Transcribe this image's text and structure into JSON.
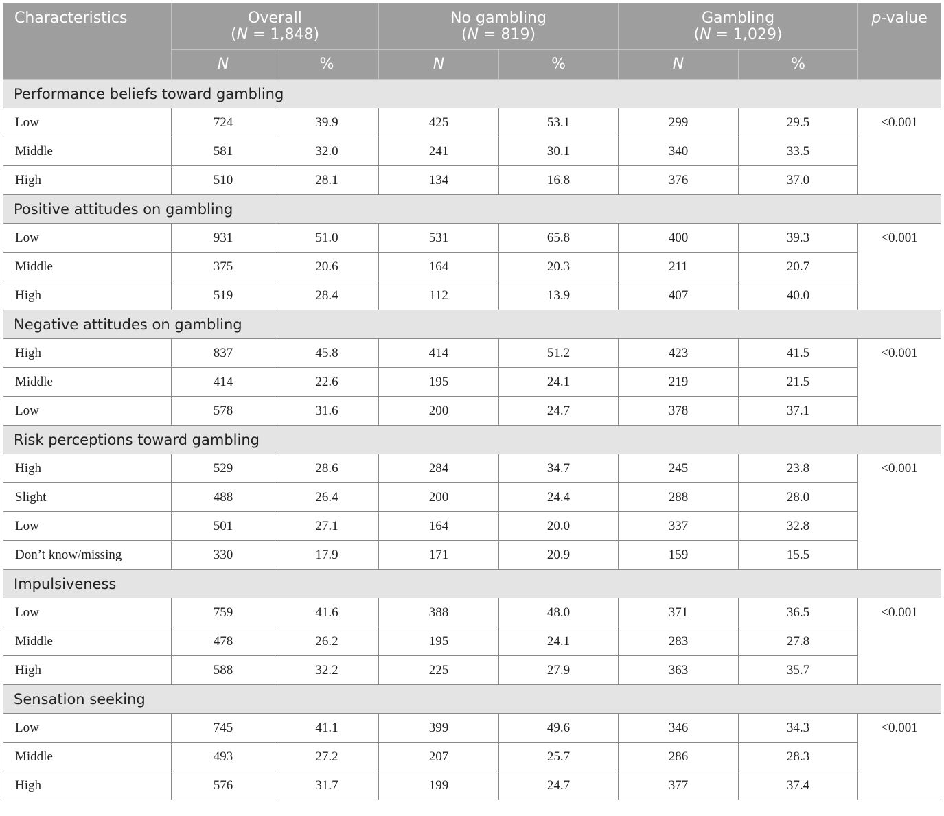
{
  "header": {
    "characteristics": "Characteristics",
    "groups": [
      {
        "name": "Overall",
        "n_prefix": "(",
        "n_symbol": "N",
        "n_value": " = 1,848)"
      },
      {
        "name": "No gambling",
        "n_prefix": "(",
        "n_symbol": "N",
        "n_value": " = 819)"
      },
      {
        "name": "Gambling",
        "n_prefix": "(",
        "n_symbol": "N",
        "n_value": " = 1,029)"
      }
    ],
    "pvalue_p": "p",
    "pvalue_rest": "-value",
    "sub_n": "N",
    "sub_pct": "%"
  },
  "sections": [
    {
      "title": "Performance beliefs toward gambling",
      "pvalue": "<0.001",
      "rows": [
        [
          "Low",
          "724",
          "39.9",
          "425",
          "53.1",
          "299",
          "29.5"
        ],
        [
          "Middle",
          "581",
          "32.0",
          "241",
          "30.1",
          "340",
          "33.5"
        ],
        [
          "High",
          "510",
          "28.1",
          "134",
          "16.8",
          "376",
          "37.0"
        ]
      ]
    },
    {
      "title": "Positive attitudes on gambling",
      "pvalue": "<0.001",
      "rows": [
        [
          "Low",
          "931",
          "51.0",
          "531",
          "65.8",
          "400",
          "39.3"
        ],
        [
          "Middle",
          "375",
          "20.6",
          "164",
          "20.3",
          "211",
          "20.7"
        ],
        [
          "High",
          "519",
          "28.4",
          "112",
          "13.9",
          "407",
          "40.0"
        ]
      ]
    },
    {
      "title": "Negative attitudes on gambling",
      "pvalue": "<0.001",
      "rows": [
        [
          "High",
          "837",
          "45.8",
          "414",
          "51.2",
          "423",
          "41.5"
        ],
        [
          "Middle",
          "414",
          "22.6",
          "195",
          "24.1",
          "219",
          "21.5"
        ],
        [
          "Low",
          "578",
          "31.6",
          "200",
          "24.7",
          "378",
          "37.1"
        ]
      ]
    },
    {
      "title": "Risk perceptions toward gambling",
      "pvalue": "<0.001",
      "rows": [
        [
          "High",
          "529",
          "28.6",
          "284",
          "34.7",
          "245",
          "23.8"
        ],
        [
          "Slight",
          "488",
          "26.4",
          "200",
          "24.4",
          "288",
          "28.0"
        ],
        [
          "Low",
          "501",
          "27.1",
          "164",
          "20.0",
          "337",
          "32.8"
        ],
        [
          "Don’t know/missing",
          "330",
          "17.9",
          "171",
          "20.9",
          "159",
          "15.5"
        ]
      ]
    },
    {
      "title": "Impulsiveness",
      "pvalue": "<0.001",
      "rows": [
        [
          "Low",
          "759",
          "41.6",
          "388",
          "48.0",
          "371",
          "36.5"
        ],
        [
          "Middle",
          "478",
          "26.2",
          "195",
          "24.1",
          "283",
          "27.8"
        ],
        [
          "High",
          "588",
          "32.2",
          "225",
          "27.9",
          "363",
          "35.7"
        ]
      ]
    },
    {
      "title": "Sensation seeking",
      "pvalue": "<0.001",
      "rows": [
        [
          "Low",
          "745",
          "41.1",
          "399",
          "49.6",
          "346",
          "34.3"
        ],
        [
          "Middle",
          "493",
          "27.2",
          "207",
          "25.7",
          "286",
          "28.3"
        ],
        [
          "High",
          "576",
          "31.7",
          "199",
          "24.7",
          "377",
          "37.4"
        ]
      ]
    }
  ],
  "colors": {
    "header_bg": "#9e9e9e",
    "section_bg": "#e4e4e4",
    "border": "#8a8a8a"
  }
}
